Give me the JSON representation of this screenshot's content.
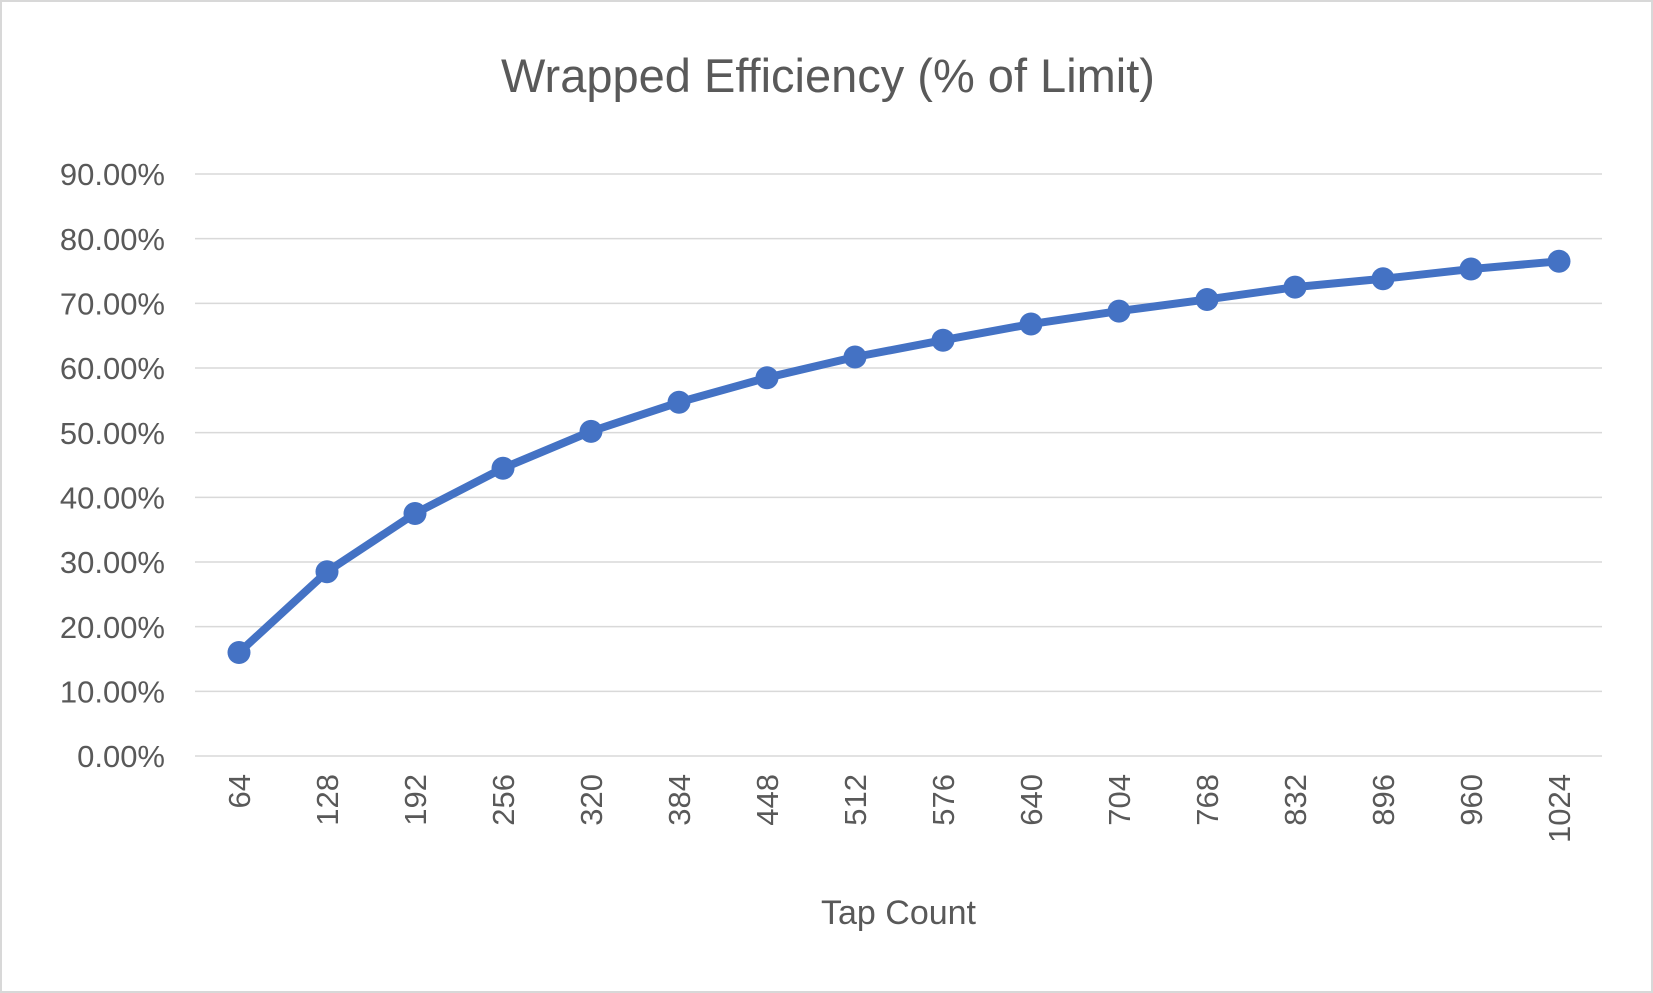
{
  "chart_data": {
    "type": "line",
    "title": "Wrapped Efficiency (% of Limit)",
    "xlabel": "Tap Count",
    "ylabel": "",
    "categories": [
      64,
      128,
      192,
      256,
      320,
      384,
      448,
      512,
      576,
      640,
      704,
      768,
      832,
      896,
      960,
      1024
    ],
    "series": [
      {
        "name": "Wrapped Efficiency (% of Limit)",
        "values": [
          16.0,
          28.5,
          37.5,
          44.5,
          50.2,
          54.7,
          58.5,
          61.7,
          64.3,
          66.8,
          68.8,
          70.6,
          72.5,
          73.8,
          75.3,
          76.5
        ],
        "color": "#4472C4",
        "marker": "circle",
        "line_style": "solid"
      }
    ],
    "y_axis": {
      "min": 0,
      "max": 90,
      "step": 10,
      "unit": "%",
      "tick_labels": [
        "0.00%",
        "10.00%",
        "20.00%",
        "30.00%",
        "40.00%",
        "50.00%",
        "60.00%",
        "70.00%",
        "80.00%",
        "90.00%"
      ]
    },
    "x_axis": {
      "title": "Tap Count",
      "label_rotation": -90
    },
    "legend": "none",
    "grid": true,
    "colors": {
      "text": "#595959",
      "gridline": "#D9D9D9",
      "line": "#4472C4",
      "background": "#FFFFFF",
      "frame_border": "#D8D8D8"
    }
  }
}
